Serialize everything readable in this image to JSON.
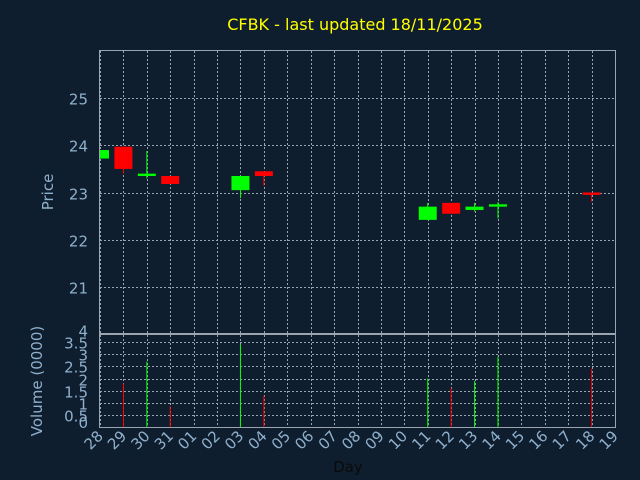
{
  "chart_data": {
    "type": "candlestick",
    "title": "CFBK - last updated 18/11/2025",
    "colors": {
      "background": "#0f1e2e",
      "title": "#ffff00",
      "axis_text": "#8fb0cc",
      "grid": "#9aa5b0",
      "up": "#00ff00",
      "down": "#ff0000"
    },
    "grid": true,
    "price_panel": {
      "ylabel": "Price",
      "ylim": [
        20,
        26
      ],
      "yticks": [
        "21",
        "22",
        "23",
        "24",
        "25"
      ]
    },
    "volume_panel": {
      "ylabel": "Volume (0000)",
      "ylim": [
        0,
        3.8
      ],
      "yticks": [
        "0",
        "0.5",
        "1",
        "1.5",
        "2",
        "2.5",
        "3",
        "3.5",
        "4"
      ]
    },
    "xlabel": "Day",
    "x_ticks": [
      "28",
      "29",
      "30",
      "31",
      "01",
      "02",
      "03",
      "04",
      "05",
      "06",
      "07",
      "08",
      "09",
      "10",
      "11",
      "12",
      "13",
      "14",
      "15",
      "16",
      "17",
      "18",
      "19"
    ],
    "candles": [
      {
        "day": "28",
        "open": 23.72,
        "high": 23.9,
        "low": 23.72,
        "close": 23.9,
        "volume": 0
      },
      {
        "day": "29",
        "open": 23.97,
        "high": 23.98,
        "low": 23.4,
        "close": 23.5,
        "volume": 1.8
      },
      {
        "day": "30",
        "open": 23.35,
        "high": 23.88,
        "low": 23.3,
        "close": 23.4,
        "volume": 2.7
      },
      {
        "day": "31",
        "open": 23.35,
        "high": 23.35,
        "low": 23.18,
        "close": 23.18,
        "volume": 0.85
      },
      {
        "day": "03",
        "open": 23.05,
        "high": 23.35,
        "low": 22.88,
        "close": 23.35,
        "volume": 3.4
      },
      {
        "day": "04",
        "open": 23.45,
        "high": 23.45,
        "low": 23.15,
        "close": 23.35,
        "volume": 1.3
      },
      {
        "day": "11",
        "open": 22.42,
        "high": 22.78,
        "low": 22.42,
        "close": 22.7,
        "volume": 2.0
      },
      {
        "day": "12",
        "open": 22.78,
        "high": 22.78,
        "low": 22.55,
        "close": 22.55,
        "volume": 1.6
      },
      {
        "day": "13",
        "open": 22.63,
        "high": 22.78,
        "low": 22.6,
        "close": 22.7,
        "volume": 1.9
      },
      {
        "day": "14",
        "open": 22.7,
        "high": 22.8,
        "low": 22.45,
        "close": 22.75,
        "volume": 2.9
      },
      {
        "day": "18",
        "open": 23.0,
        "high": 23.0,
        "low": 22.8,
        "close": 22.95,
        "volume": 2.4
      }
    ]
  }
}
